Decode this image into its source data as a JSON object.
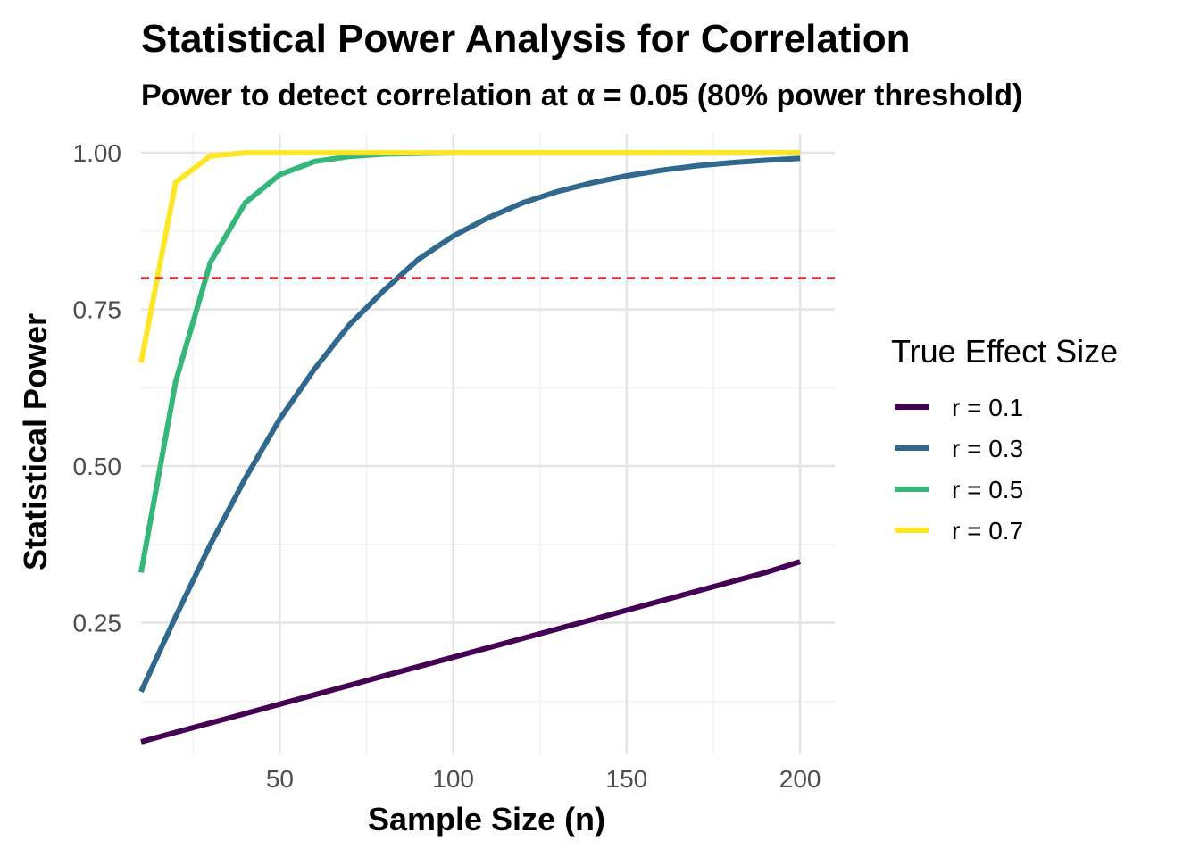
{
  "chart_data": {
    "type": "line",
    "title": "Statistical Power Analysis for Correlation",
    "subtitle": "Power to detect correlation at α = 0.05 (80% power threshold)",
    "xlabel": "Sample Size (n)",
    "ylabel": "Statistical Power",
    "xlim": [
      10,
      210
    ],
    "ylim": [
      0.04,
      1.03
    ],
    "x_ticks": [
      50,
      100,
      150,
      200
    ],
    "x_tick_labels": [
      "50",
      "100",
      "150",
      "200"
    ],
    "y_ticks": [
      0.25,
      0.5,
      0.75,
      1.0
    ],
    "y_tick_labels": [
      "0.25",
      "0.50",
      "0.75",
      "1.00"
    ],
    "grid": true,
    "reference_line": {
      "y": 0.8,
      "color": "#e8262b",
      "style": "dashed"
    },
    "x": [
      10,
      20,
      30,
      40,
      50,
      60,
      70,
      80,
      90,
      100,
      110,
      120,
      130,
      140,
      150,
      160,
      170,
      180,
      190,
      200
    ],
    "legend": {
      "title": "True Effect Size",
      "position": "right"
    },
    "series": [
      {
        "name": "r = 0.1",
        "color": "#440154",
        "values": [
          0.06,
          0.075,
          0.09,
          0.105,
          0.12,
          0.135,
          0.15,
          0.165,
          0.18,
          0.195,
          0.21,
          0.225,
          0.24,
          0.255,
          0.27,
          0.285,
          0.3,
          0.315,
          0.33,
          0.3475
        ]
      },
      {
        "name": "r = 0.3",
        "color": "#31688e",
        "values": [
          0.14,
          0.26,
          0.375,
          0.48,
          0.575,
          0.655,
          0.725,
          0.78,
          0.83,
          0.867,
          0.896,
          0.92,
          0.938,
          0.952,
          0.963,
          0.972,
          0.979,
          0.984,
          0.988,
          0.991
        ]
      },
      {
        "name": "r = 0.5",
        "color": "#35b779",
        "values": [
          0.33,
          0.635,
          0.825,
          0.92,
          0.965,
          0.986,
          0.994,
          0.998,
          0.999,
          1.0,
          1.0,
          1.0,
          1.0,
          1.0,
          1.0,
          1.0,
          1.0,
          1.0,
          1.0,
          1.0
        ]
      },
      {
        "name": "r = 0.7",
        "color": "#fde725",
        "values": [
          0.665,
          0.953,
          0.995,
          1.0,
          1.0,
          1.0,
          1.0,
          1.0,
          1.0,
          1.0,
          1.0,
          1.0,
          1.0,
          1.0,
          1.0,
          1.0,
          1.0,
          1.0,
          1.0,
          1.0
        ]
      }
    ]
  }
}
